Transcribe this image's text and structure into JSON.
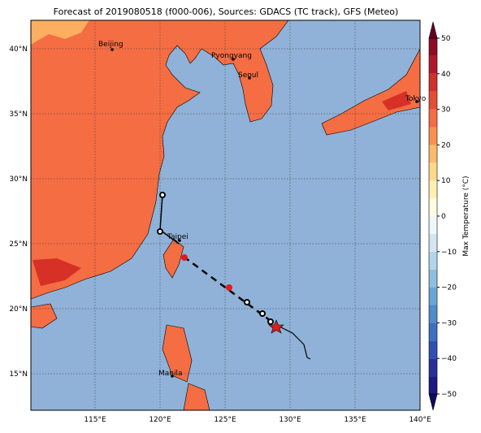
{
  "map": {
    "title": "Forecast of 2019080518 (f000-006), Sources: GDACS (TC track), GFS (Meteo)",
    "lon_ticks": [
      {
        "value": 115,
        "label": "115°E"
      },
      {
        "value": 120,
        "label": "120°E"
      },
      {
        "value": 125,
        "label": "125°E"
      },
      {
        "value": 130,
        "label": "130°E"
      },
      {
        "value": 135,
        "label": "135°E"
      },
      {
        "value": 140,
        "label": "140°E"
      }
    ],
    "lat_ticks": [
      {
        "value": 15,
        "label": "15°N"
      },
      {
        "value": 20,
        "label": "20°N"
      },
      {
        "value": 25,
        "label": "25°N"
      },
      {
        "value": 30,
        "label": "30°N"
      },
      {
        "value": 35,
        "label": "35°N"
      },
      {
        "value": 40,
        "label": "40°N"
      }
    ],
    "cities": [
      "Beijing",
      "Pyongyang",
      "Seoul",
      "Tokyo",
      "Taipei",
      "Manila"
    ],
    "colorbar": {
      "label": "Max Temperature (°C)",
      "ticks": [
        {
          "value": -50,
          "label": "−50"
        },
        {
          "value": -40,
          "label": "−40"
        },
        {
          "value": -30,
          "label": "−30"
        },
        {
          "value": -20,
          "label": "−20"
        },
        {
          "value": -10,
          "label": "−10"
        },
        0,
        10,
        20,
        30,
        40,
        50
      ]
    }
  }
}
